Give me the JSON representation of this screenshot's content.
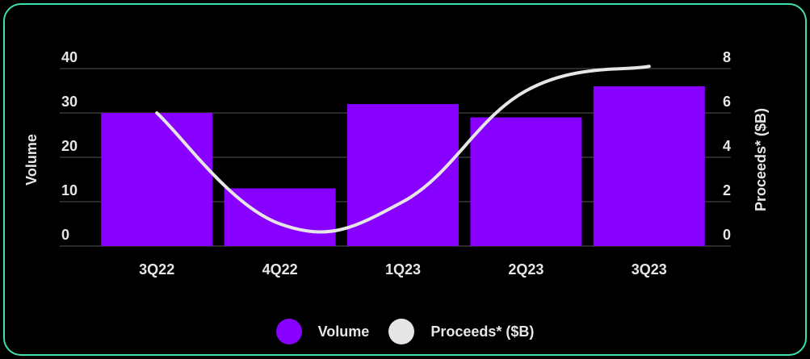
{
  "chart_data": {
    "type": "bar",
    "categories": [
      "3Q22",
      "4Q22",
      "1Q23",
      "2Q23",
      "3Q23"
    ],
    "series": [
      {
        "name": "Volume",
        "type": "bar",
        "axis": "left",
        "values": [
          30,
          13,
          32,
          29,
          36
        ],
        "color": "#8800ff"
      },
      {
        "name": "Proceeds* ($B)",
        "type": "line",
        "axis": "right",
        "values": [
          6,
          1,
          2,
          7,
          8.1
        ],
        "color": "#e6e6e6"
      }
    ],
    "y_left": {
      "label": "Volume",
      "range": [
        0,
        40
      ],
      "ticks": [
        "0",
        "10",
        "20",
        "30",
        "40"
      ]
    },
    "y_right": {
      "label": "Proceeds* ($B)",
      "range": [
        0,
        8
      ],
      "ticks": [
        "0",
        "2",
        "4",
        "6",
        "8"
      ]
    },
    "grid": true,
    "legend_position": "bottom-center"
  },
  "colors": {
    "border": "#3de0b0",
    "background": "#000000",
    "text": "#e6e6e6",
    "grid": "#555555"
  }
}
